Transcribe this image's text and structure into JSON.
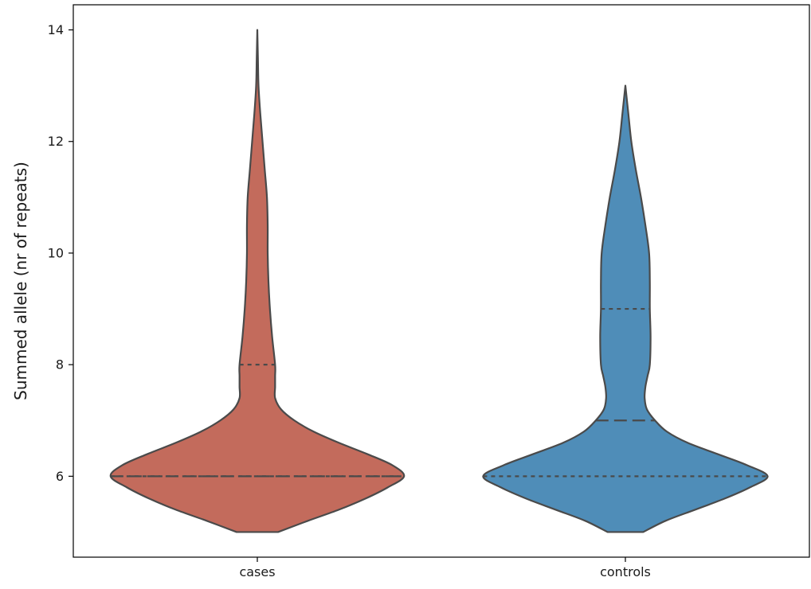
{
  "chart_data": {
    "type": "violin",
    "title": "",
    "xlabel": "",
    "ylabel": "Summed allele (nr of repeats)",
    "ylim": [
      4.55,
      14.45
    ],
    "yticks": [
      6,
      8,
      10,
      12,
      14
    ],
    "categories": [
      "cases",
      "controls"
    ],
    "grid": false,
    "legend": "none",
    "violins": [
      {
        "category": "cases",
        "color": "#c36b5c",
        "min": 5,
        "max": 14,
        "quartiles": {
          "q1": 6,
          "median": 6,
          "q3": 8
        },
        "density": [
          [
            5.0,
            0.14
          ],
          [
            5.2,
            0.34
          ],
          [
            5.4,
            0.55
          ],
          [
            5.6,
            0.73
          ],
          [
            5.8,
            0.88
          ],
          [
            6.0,
            0.99
          ],
          [
            6.2,
            0.91
          ],
          [
            6.4,
            0.74
          ],
          [
            6.6,
            0.55
          ],
          [
            6.8,
            0.38
          ],
          [
            7.0,
            0.25
          ],
          [
            7.2,
            0.16
          ],
          [
            7.4,
            0.12
          ],
          [
            7.6,
            0.12
          ],
          [
            7.8,
            0.12
          ],
          [
            8.0,
            0.12
          ],
          [
            8.5,
            0.1
          ],
          [
            9.0,
            0.085
          ],
          [
            9.5,
            0.075
          ],
          [
            10.0,
            0.07
          ],
          [
            10.5,
            0.07
          ],
          [
            11.0,
            0.065
          ],
          [
            11.5,
            0.05
          ],
          [
            12.0,
            0.035
          ],
          [
            12.5,
            0.02
          ],
          [
            13.0,
            0.008
          ],
          [
            13.5,
            0.004
          ],
          [
            14.0,
            0.0
          ]
        ]
      },
      {
        "category": "controls",
        "color": "#4f8db8",
        "min": 5,
        "max": 13,
        "quartiles": {
          "q1": 6,
          "median": 7,
          "q3": 9
        },
        "density": [
          [
            5.0,
            0.12
          ],
          [
            5.2,
            0.27
          ],
          [
            5.4,
            0.47
          ],
          [
            5.6,
            0.67
          ],
          [
            5.8,
            0.84
          ],
          [
            6.0,
            0.96
          ],
          [
            6.2,
            0.82
          ],
          [
            6.4,
            0.62
          ],
          [
            6.6,
            0.42
          ],
          [
            6.8,
            0.28
          ],
          [
            7.0,
            0.2
          ],
          [
            7.2,
            0.145
          ],
          [
            7.4,
            0.13
          ],
          [
            7.6,
            0.135
          ],
          [
            7.8,
            0.15
          ],
          [
            8.0,
            0.165
          ],
          [
            8.5,
            0.17
          ],
          [
            9.0,
            0.165
          ],
          [
            9.5,
            0.165
          ],
          [
            10.0,
            0.16
          ],
          [
            10.5,
            0.135
          ],
          [
            11.0,
            0.105
          ],
          [
            11.5,
            0.07
          ],
          [
            12.0,
            0.04
          ],
          [
            12.5,
            0.02
          ],
          [
            13.0,
            0.0
          ]
        ]
      }
    ]
  }
}
